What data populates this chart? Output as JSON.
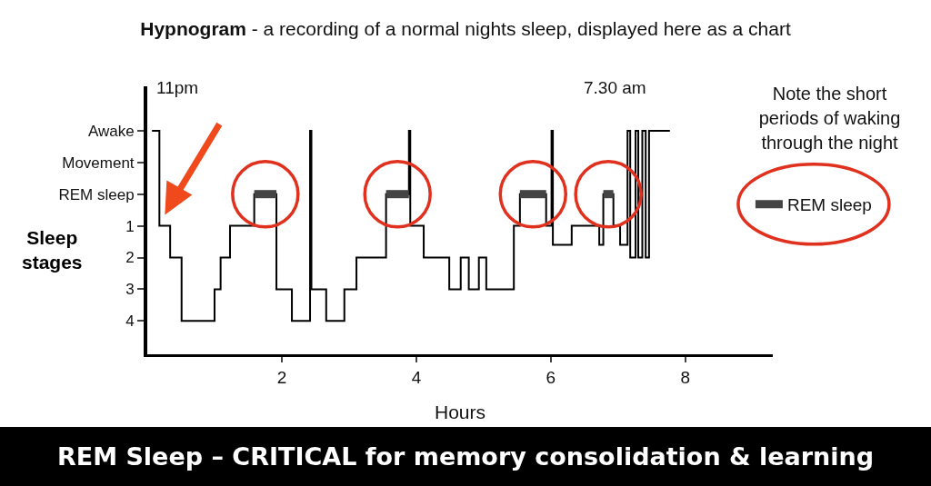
{
  "chart_data": {
    "type": "step",
    "title": "Hypnogram - a recording of a normal nights sleep, displayed here as a chart",
    "xlabel": "Hours",
    "ylabel": "Sleep stages",
    "annotations": [
      "11pm",
      "7.30 am",
      "Note the short periods of waking through the night",
      "REM Sleep – CRITICAL for memory consolidation & learning"
    ],
    "series": [
      {
        "color": "#000000",
        "x": [
          0.07,
          0.18,
          0.34,
          0.51,
          1.0,
          1.09,
          1.23,
          1.59,
          1.92,
          2.15,
          2.42,
          2.44,
          2.66,
          2.93,
          3.11,
          3.55,
          3.89,
          3.91,
          4.11,
          4.49,
          4.66,
          4.78,
          4.93,
          5.04,
          5.45,
          5.54,
          5.93,
          6.01,
          6.03,
          6.31,
          6.72,
          6.78,
          6.93,
          7.03,
          7.14,
          7.18,
          7.26,
          7.3,
          7.36,
          7.41,
          7.46,
          7.77
        ],
        "values": [
          -2,
          1,
          2,
          4,
          3,
          2,
          1,
          0,
          3,
          4,
          -2,
          3,
          4,
          3,
          2,
          0,
          -2,
          1,
          2,
          3,
          2,
          3,
          2,
          3,
          1,
          0,
          1,
          -2,
          1.6,
          1,
          1.6,
          0,
          1,
          1.6,
          -2,
          2,
          -2,
          2,
          -2,
          2,
          -2,
          -2
        ]
      },
      {
        "name": "REM sleep",
        "type": "line",
        "color": "#444444",
        "x": [
          1.59,
          1.92,
          1.93,
          3.55,
          3.89,
          3.9,
          5.54,
          5.93,
          5.94,
          6.78,
          6.93
        ],
        "values": [
          0,
          0,
          null,
          0,
          0,
          null,
          0,
          0,
          null,
          0,
          0
        ]
      }
    ],
    "xlim": [
      0,
      9.3
    ],
    "xticks": [
      2,
      4,
      6,
      8
    ],
    "ylim": [
      5.05,
      -3.4
    ],
    "yticks": [
      {
        "value": -2,
        "label": "Awake"
      },
      {
        "value": -1,
        "label": "Movement"
      },
      {
        "value": 0,
        "label": "REM sleep"
      },
      1,
      2,
      3,
      4
    ],
    "grid": false,
    "legend": "right",
    "marker": "none",
    "line_style": "solid"
  }
}
